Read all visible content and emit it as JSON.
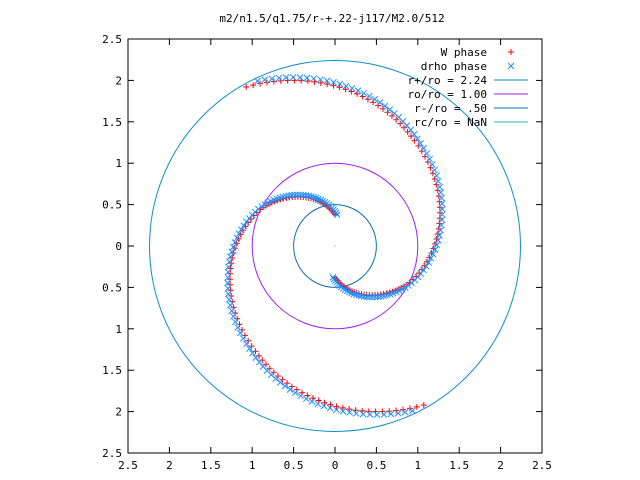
{
  "chart_data": {
    "type": "scatter",
    "title": "m2/n1.5/q1.75/r-+.22-j117/M2.0/512",
    "xlabel": "",
    "ylabel": "",
    "xlim": [
      -2.5,
      2.5
    ],
    "ylim": [
      -2.5,
      2.5
    ],
    "x_tick_values": [
      -2.5,
      -2,
      -1.5,
      -1,
      -0.5,
      0,
      0.5,
      1,
      1.5,
      2,
      2.5
    ],
    "x_tick_labels": [
      "2.5",
      "2",
      "1.5",
      "1",
      "0.5",
      "0",
      "0.5",
      "1",
      "1.5",
      "2",
      "2.5"
    ],
    "y_tick_values": [
      2.5,
      2,
      1.5,
      1,
      0.5,
      0,
      -0.5,
      -1,
      -1.5,
      -2,
      -2.5
    ],
    "y_tick_labels": [
      "2.5",
      "2",
      "1.5",
      "1",
      "0.5",
      "0",
      "0.5",
      "1",
      "1.5",
      "2",
      "2.5"
    ],
    "grid": false,
    "legend_position": "top-right",
    "series": [
      {
        "name": "W phase",
        "kind": "points",
        "marker": "plus",
        "color": "#ff0000",
        "arm_crossings": [
          {
            "r": 0.38,
            "phase": -1.57
          },
          {
            "r": 1.0,
            "phase": -0.47
          },
          {
            "r": 1.6,
            "phase": 0.94
          },
          {
            "r": 2.2,
            "phase": 2.08
          }
        ]
      },
      {
        "name": "drho phase",
        "kind": "points",
        "marker": "cross",
        "color": "#1e90ff",
        "arm_crossings": [
          {
            "r": 0.38,
            "phase": -1.64
          },
          {
            "r": 1.0,
            "phase": -0.51
          },
          {
            "r": 1.6,
            "phase": 0.85
          },
          {
            "r": 2.2,
            "phase": 2.01
          }
        ]
      },
      {
        "name": "r+/ro = 2.24",
        "kind": "circle",
        "radius": 2.24,
        "color": "#0e8fc7"
      },
      {
        "name": "ro/ro = 1.00",
        "kind": "circle",
        "radius": 1.0,
        "color": "#a020f0"
      },
      {
        "name": "r-/ro = .50",
        "kind": "circle",
        "radius": 0.5,
        "color": "#0e6fb0"
      },
      {
        "name": "rc/ro = NaN",
        "kind": "circle",
        "radius": null,
        "color": "#22b8c8"
      }
    ]
  }
}
